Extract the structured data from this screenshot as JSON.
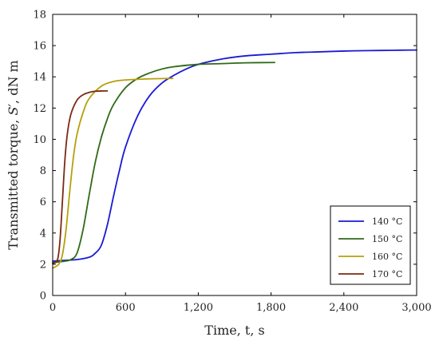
{
  "chart_data": {
    "type": "line",
    "title": "",
    "xlabel": "Time, t, s",
    "ylabel_prefix": "Transmitted torque, ",
    "ylabel_symbol": "S′",
    "ylabel_suffix": ", dN m",
    "xlim": [
      0,
      3000
    ],
    "ylim": [
      0,
      18
    ],
    "xticks": [
      0,
      600,
      1200,
      1800,
      2400,
      3000
    ],
    "xtick_labels": [
      "0",
      "600",
      "1,200",
      "1,800",
      "2,400",
      "3,000"
    ],
    "yticks": [
      0,
      2,
      4,
      6,
      8,
      10,
      12,
      14,
      16,
      18
    ],
    "ytick_labels": [
      "0",
      "2",
      "4",
      "6",
      "8",
      "10",
      "12",
      "14",
      "16",
      "18"
    ],
    "grid": false,
    "legend_position": "bottom-right",
    "series": [
      {
        "name": "140 °C",
        "color": "#1a1ad4",
        "points": [
          [
            0,
            2.2
          ],
          [
            100,
            2.25
          ],
          [
            200,
            2.3
          ],
          [
            300,
            2.45
          ],
          [
            350,
            2.7
          ],
          [
            400,
            3.2
          ],
          [
            450,
            4.5
          ],
          [
            500,
            6.3
          ],
          [
            550,
            8.0
          ],
          [
            600,
            9.5
          ],
          [
            700,
            11.5
          ],
          [
            800,
            12.8
          ],
          [
            900,
            13.6
          ],
          [
            1000,
            14.1
          ],
          [
            1100,
            14.5
          ],
          [
            1200,
            14.8
          ],
          [
            1400,
            15.15
          ],
          [
            1600,
            15.35
          ],
          [
            1800,
            15.45
          ],
          [
            2000,
            15.55
          ],
          [
            2200,
            15.6
          ],
          [
            2400,
            15.65
          ],
          [
            2600,
            15.68
          ],
          [
            2800,
            15.7
          ],
          [
            3000,
            15.72
          ]
        ]
      },
      {
        "name": "150 °C",
        "color": "#2f6a17",
        "points": [
          [
            0,
            2.1
          ],
          [
            50,
            2.15
          ],
          [
            100,
            2.2
          ],
          [
            150,
            2.3
          ],
          [
            200,
            2.7
          ],
          [
            250,
            4.2
          ],
          [
            300,
            6.4
          ],
          [
            350,
            8.5
          ],
          [
            400,
            10.1
          ],
          [
            450,
            11.3
          ],
          [
            500,
            12.2
          ],
          [
            600,
            13.3
          ],
          [
            700,
            13.9
          ],
          [
            800,
            14.25
          ],
          [
            900,
            14.5
          ],
          [
            1000,
            14.65
          ],
          [
            1200,
            14.8
          ],
          [
            1400,
            14.85
          ],
          [
            1600,
            14.9
          ],
          [
            1830,
            14.92
          ]
        ]
      },
      {
        "name": "160 °C",
        "color": "#b5a00c",
        "points": [
          [
            0,
            1.75
          ],
          [
            50,
            2.0
          ],
          [
            80,
            2.6
          ],
          [
            110,
            4.2
          ],
          [
            140,
            6.6
          ],
          [
            170,
            8.8
          ],
          [
            200,
            10.3
          ],
          [
            250,
            11.7
          ],
          [
            300,
            12.6
          ],
          [
            400,
            13.4
          ],
          [
            500,
            13.7
          ],
          [
            600,
            13.8
          ],
          [
            800,
            13.87
          ],
          [
            990,
            13.9
          ]
        ]
      },
      {
        "name": "170 °C",
        "color": "#7a2a15",
        "points": [
          [
            0,
            2.05
          ],
          [
            40,
            2.3
          ],
          [
            60,
            3.5
          ],
          [
            80,
            6.0
          ],
          [
            100,
            8.6
          ],
          [
            120,
            10.3
          ],
          [
            150,
            11.6
          ],
          [
            200,
            12.5
          ],
          [
            250,
            12.85
          ],
          [
            300,
            13.0
          ],
          [
            350,
            13.08
          ],
          [
            450,
            13.1
          ]
        ]
      }
    ]
  }
}
